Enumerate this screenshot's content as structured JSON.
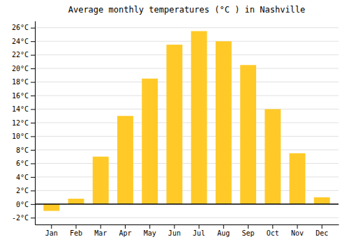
{
  "chart_data": {
    "type": "bar",
    "title": "Average monthly temperatures (°C ) in Nashville",
    "categories": [
      "Jan",
      "Feb",
      "Mar",
      "Apr",
      "May",
      "Jun",
      "Jul",
      "Aug",
      "Sep",
      "Oct",
      "Nov",
      "Dec"
    ],
    "values": [
      -1.0,
      0.8,
      7.0,
      13.0,
      18.5,
      23.5,
      25.5,
      24.0,
      20.5,
      14.0,
      7.5,
      1.0
    ],
    "color": "#FFCA28",
    "ylim": [
      -3,
      27
    ],
    "yticks": [
      {
        "value": -2,
        "label": "-2°C"
      },
      {
        "value": 0,
        "label": "0°C"
      },
      {
        "value": 2,
        "label": "2°C"
      },
      {
        "value": 4,
        "label": "4°C"
      },
      {
        "value": 6,
        "label": "6°C"
      },
      {
        "value": 8,
        "label": "8°C"
      },
      {
        "value": 10,
        "label": "10°C"
      },
      {
        "value": 12,
        "label": "12°C"
      },
      {
        "value": 14,
        "label": "14°C"
      },
      {
        "value": 16,
        "label": "16°C"
      },
      {
        "value": 18,
        "label": "18°C"
      },
      {
        "value": 20,
        "label": "20°C"
      },
      {
        "value": 22,
        "label": "22°C"
      },
      {
        "value": 24,
        "label": "24°C"
      },
      {
        "value": 26,
        "label": "26°C"
      }
    ],
    "grid": true
  }
}
